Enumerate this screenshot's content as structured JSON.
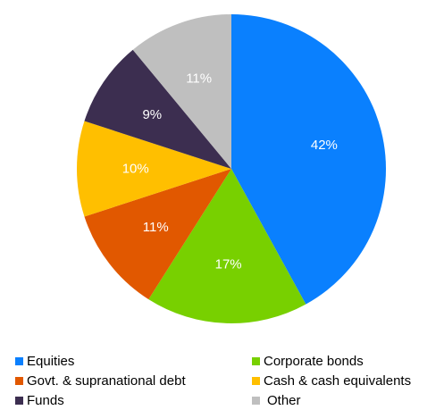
{
  "chart_data": {
    "type": "pie",
    "title": "",
    "slices": [
      {
        "label": "Equities",
        "value": 42,
        "display": "42%",
        "color": "#0a80fe"
      },
      {
        "label": "Corporate bonds",
        "value": 17,
        "display": "17%",
        "color": "#78d000"
      },
      {
        "label": "Govt. & supranational debt",
        "value": 11,
        "display": "11%",
        "color": "#e15800"
      },
      {
        "label": "Cash & cash equivalents",
        "value": 10,
        "display": "10%",
        "color": "#ffbf00"
      },
      {
        "label": "Funds",
        "value": 9,
        "display": "9%",
        "color": "#3c2e50"
      },
      {
        "label": "Other",
        "value": 11,
        "display": "11%",
        "color": "#bfbfbf"
      }
    ],
    "legend_position": "bottom"
  }
}
